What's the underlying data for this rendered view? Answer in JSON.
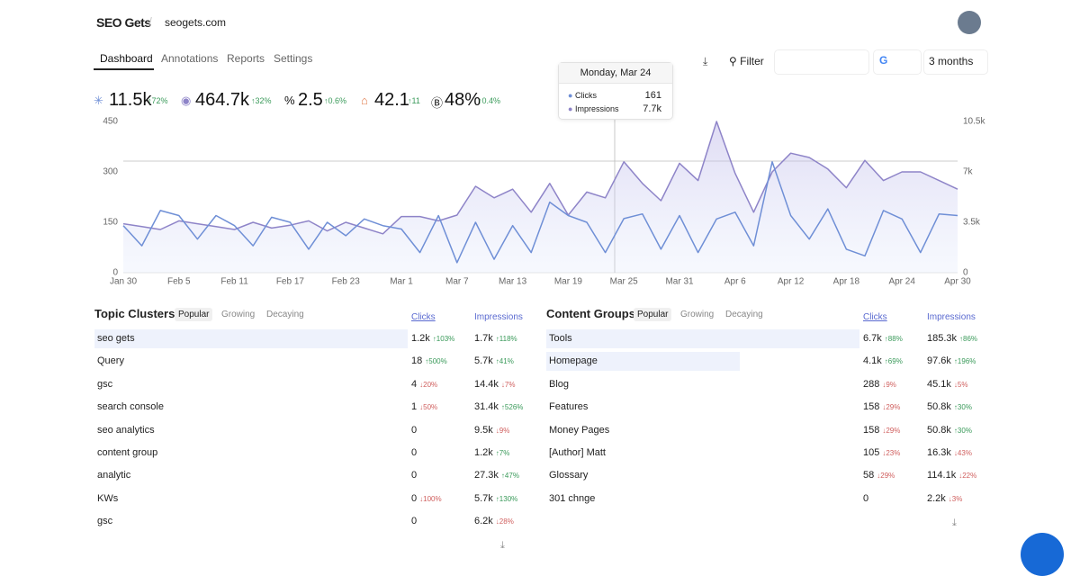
{
  "header": {
    "logo": "SEO Gets",
    "site": "seogets.com"
  },
  "tabs": [
    "Dashboard",
    "Annotations",
    "Reports",
    "Settings"
  ],
  "toolbar": {
    "filter": "Filter",
    "range": "3 months"
  },
  "stats": [
    {
      "value": "11.5k",
      "change": "↑72%"
    },
    {
      "value": "464.7k",
      "change": "↑32%"
    },
    {
      "value": "2.5",
      "change": "↑0.6%"
    },
    {
      "value": "42.1",
      "change": "↑11"
    },
    {
      "value": "48%",
      "change": "↑0.4%"
    }
  ],
  "tooltip": {
    "title": "Monday, Mar 24",
    "values": [
      "161",
      "7.7k"
    ]
  },
  "chart_data": {
    "type": "line",
    "categories": [
      "Jan 30",
      null,
      null,
      "Feb 5",
      null,
      null,
      "Feb 11",
      null,
      null,
      "Feb 17",
      null,
      null,
      "Feb 23",
      null,
      null,
      "Mar 1",
      null,
      null,
      "Mar 7",
      null,
      null,
      "Mar 13",
      null,
      null,
      "Mar 19",
      null,
      null,
      "Mar 25",
      null,
      null,
      "Mar 31",
      null,
      null,
      "Apr 6",
      null,
      null,
      "Apr 12",
      null,
      null,
      "Apr 18",
      null,
      null,
      "Apr 24",
      null,
      null,
      "Apr 30"
    ],
    "series": [
      {
        "name": "Clicks",
        "color": "#6f8fd6",
        "axis": "y",
        "values": [
          140,
          80,
          185,
          170,
          100,
          170,
          140,
          80,
          165,
          150,
          70,
          150,
          110,
          160,
          140,
          130,
          60,
          170,
          30,
          150,
          40,
          140,
          60,
          210,
          170,
          150,
          60,
          161,
          175,
          70,
          170,
          60,
          160,
          180,
          80,
          330,
          170,
          100,
          190,
          70,
          50,
          185,
          160,
          60,
          175,
          170
        ]
      },
      {
        "name": "Impressions",
        "color": "#8e84c8",
        "axis": "y2",
        "values": [
          3400,
          3200,
          3000,
          3600,
          3400,
          3200,
          3000,
          3500,
          3100,
          3300,
          3600,
          2900,
          3500,
          3100,
          2700,
          3900,
          3900,
          3600,
          4000,
          6000,
          5200,
          5800,
          4200,
          6200,
          4000,
          5600,
          5200,
          7700,
          6200,
          5000,
          7600,
          6400,
          10500,
          6900,
          4200,
          7000,
          8300,
          8000,
          7200,
          5900,
          7800,
          6400,
          7000,
          7000,
          6400,
          5800
        ]
      }
    ],
    "ylim": [
      0,
      450
    ],
    "yticks": [
      0,
      150,
      300,
      450
    ],
    "y2lim": [
      0,
      10500
    ],
    "y2ticks": [
      0,
      {
        "value": 3500,
        "label": "3.5k"
      },
      {
        "value": 7000,
        "label": "7k"
      },
      {
        "value": 10500,
        "label": "10.5k"
      }
    ],
    "grid": false
  },
  "tables": [
    {
      "title": "Topic Clusters",
      "tabs": [
        "Popular",
        "Growing",
        "Decaying"
      ],
      "columns": [
        "Clicks",
        "Impressions"
      ],
      "rows": [
        [
          "seo gets",
          "1.2k",
          "↑103%",
          "1.7k",
          "↑118%"
        ],
        [
          "Query",
          "18",
          "↑500%",
          "5.7k",
          "↑41%"
        ],
        [
          "gsc",
          "4",
          "↓20%",
          "14.4k",
          "↓7%"
        ],
        [
          "search console",
          "1",
          "↓50%",
          "31.4k",
          "↑526%"
        ],
        [
          "seo analytics",
          "0",
          null,
          "9.5k",
          "↓9%"
        ],
        [
          "content group",
          "0",
          null,
          "1.2k",
          "↑7%"
        ],
        [
          "analytic",
          "0",
          null,
          "27.3k",
          "↑47%"
        ],
        [
          "KWs",
          "0",
          "↓100%",
          "5.7k",
          "↑130%"
        ],
        [
          "gsc",
          "0",
          null,
          "6.2k",
          "↓28%"
        ]
      ]
    },
    {
      "title": "Content Groups",
      "tabs": [
        "Popular",
        "Growing",
        "Decaying"
      ],
      "columns": [
        "Clicks",
        "Impressions"
      ],
      "rows": [
        [
          "Tools",
          "6.7k",
          "↑88%",
          "185.3k",
          "↑86%"
        ],
        [
          "Homepage",
          "4.1k",
          "↑69%",
          "97.6k",
          "↑196%"
        ],
        [
          "Blog",
          "288",
          "↓9%",
          "45.1k",
          "↓5%"
        ],
        [
          "Features",
          "158",
          "↓29%",
          "50.8k",
          "↑30%"
        ],
        [
          "Money Pages",
          "158",
          "↓29%",
          "50.8k",
          "↑30%"
        ],
        [
          "[Author] Matt",
          "105",
          "↓23%",
          "16.3k",
          "↓43%"
        ],
        [
          "Glossary",
          "58",
          "↓29%",
          "114.1k",
          "↓22%"
        ],
        [
          "301 chnge",
          "0",
          null,
          "2.2k",
          "↓3%"
        ]
      ]
    }
  ]
}
